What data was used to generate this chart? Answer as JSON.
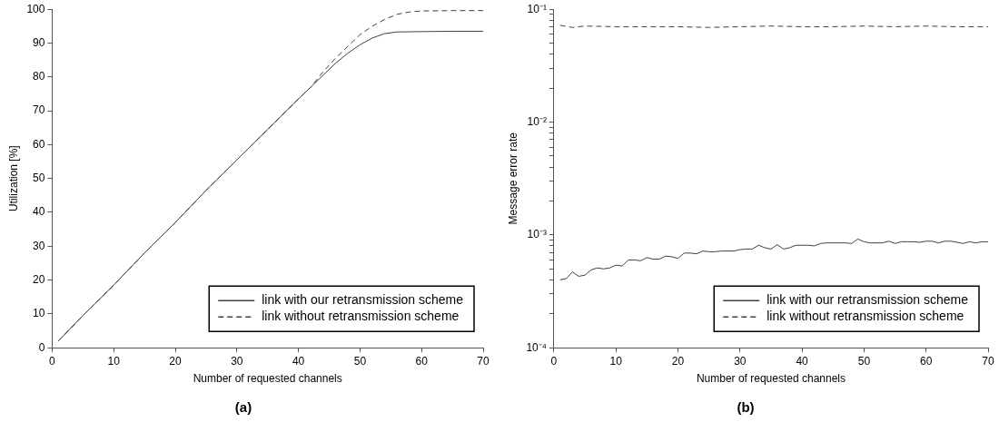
{
  "chart_data": [
    {
      "type": "line",
      "title": "(a)",
      "xlabel": "Number of requested channels",
      "ylabel": "Utilization [%]",
      "xlim": [
        0,
        70
      ],
      "xticks": [
        0,
        10,
        20,
        30,
        40,
        50,
        60,
        70
      ],
      "ylim": [
        0,
        100
      ],
      "yticks": [
        0,
        10,
        20,
        30,
        40,
        50,
        60,
        70,
        80,
        90,
        100
      ],
      "grid": false,
      "legend": "bottom right",
      "marker": "none",
      "series": [
        {
          "name": "link with our retransmission scheme",
          "color": "#404040",
          "line_style": "solid",
          "x": [
            1,
            5,
            10,
            15,
            20,
            25,
            30,
            35,
            40,
            42,
            44,
            46,
            48,
            50,
            52,
            54,
            56,
            60,
            65,
            70
          ],
          "values": [
            2,
            9.5,
            18.5,
            28,
            37,
            46.5,
            55.5,
            64.5,
            73.5,
            77,
            80.5,
            84,
            87,
            89.5,
            91.5,
            92.8,
            93.3,
            93.4,
            93.5,
            93.5
          ]
        },
        {
          "name": "link without retransmission scheme",
          "color": "#404040",
          "line_style": "dashed",
          "x": [
            1,
            5,
            10,
            15,
            20,
            25,
            30,
            35,
            40,
            42,
            44,
            46,
            48,
            50,
            52,
            54,
            56,
            58,
            60,
            65,
            70
          ],
          "values": [
            2,
            9.5,
            18.5,
            28,
            37,
            46.5,
            55.5,
            64.5,
            73.5,
            77,
            81.5,
            85.5,
            89,
            92.5,
            95,
            97,
            98.5,
            99.2,
            99.5,
            99.6,
            99.6
          ]
        }
      ]
    },
    {
      "type": "line",
      "title": "(b)",
      "xlabel": "Number of requested channels",
      "ylabel": "Message error rate",
      "log": "y",
      "xlim": [
        0,
        70
      ],
      "xticks": [
        0,
        10,
        20,
        30,
        40,
        50,
        60,
        70
      ],
      "ylim": [
        0.0001,
        0.1
      ],
      "yticks": [
        {
          "value": 0.0001,
          "label": "10⁻⁴"
        },
        {
          "value": 0.0002,
          "label": null
        },
        {
          "value": 0.0003,
          "label": null
        },
        {
          "value": 0.0004,
          "label": null
        },
        {
          "value": 0.0005,
          "label": null
        },
        {
          "value": 0.0006,
          "label": null
        },
        {
          "value": 0.0007,
          "label": null
        },
        {
          "value": 0.0008,
          "label": null
        },
        {
          "value": 0.0009,
          "label": null
        },
        {
          "value": 0.001,
          "label": "10⁻³"
        },
        {
          "value": 0.002,
          "label": null
        },
        {
          "value": 0.003,
          "label": null
        },
        {
          "value": 0.004,
          "label": null
        },
        {
          "value": 0.005,
          "label": null
        },
        {
          "value": 0.006,
          "label": null
        },
        {
          "value": 0.007,
          "label": null
        },
        {
          "value": 0.008,
          "label": null
        },
        {
          "value": 0.009,
          "label": null
        },
        {
          "value": 0.01,
          "label": "10⁻²"
        },
        {
          "value": 0.02,
          "label": null
        },
        {
          "value": 0.03,
          "label": null
        },
        {
          "value": 0.04,
          "label": null
        },
        {
          "value": 0.05,
          "label": null
        },
        {
          "value": 0.06,
          "label": null
        },
        {
          "value": 0.07,
          "label": null
        },
        {
          "value": 0.08,
          "label": null
        },
        {
          "value": 0.09,
          "label": null
        },
        {
          "value": 0.1,
          "label": "10⁻¹"
        }
      ],
      "grid": false,
      "legend": "bottom right",
      "marker": "none",
      "series": [
        {
          "name": "link with our retransmission scheme",
          "color": "#404040",
          "line_style": "solid",
          "x": [
            1,
            2,
            3,
            4,
            5,
            6,
            7,
            8,
            9,
            10,
            11,
            12,
            13,
            14,
            15,
            16,
            17,
            18,
            19,
            20,
            21,
            22,
            23,
            24,
            25,
            26,
            27,
            28,
            29,
            30,
            31,
            32,
            33,
            34,
            35,
            36,
            37,
            38,
            39,
            40,
            41,
            42,
            43,
            44,
            45,
            46,
            47,
            48,
            49,
            50,
            51,
            52,
            53,
            54,
            55,
            56,
            57,
            58,
            59,
            60,
            61,
            62,
            63,
            64,
            65,
            66,
            67,
            68,
            69,
            70
          ],
          "values": [
            0.0004,
            0.00041,
            0.00047,
            0.00043,
            0.00044,
            0.00049,
            0.00051,
            0.0005,
            0.00051,
            0.00054,
            0.00053,
            0.0006,
            0.0006,
            0.00059,
            0.00063,
            0.00061,
            0.00061,
            0.00065,
            0.00064,
            0.00062,
            0.00069,
            0.00069,
            0.00068,
            0.00072,
            0.00071,
            0.00071,
            0.00072,
            0.00072,
            0.00072,
            0.00074,
            0.00075,
            0.00075,
            0.00081,
            0.00077,
            0.00075,
            0.00082,
            0.00075,
            0.00077,
            0.00081,
            0.00081,
            0.00081,
            0.0008,
            0.00084,
            0.00085,
            0.00085,
            0.00085,
            0.00085,
            0.00084,
            0.00092,
            0.00087,
            0.00085,
            0.00085,
            0.00085,
            0.00088,
            0.00084,
            0.00087,
            0.00087,
            0.00087,
            0.00086,
            0.00088,
            0.00088,
            0.00085,
            0.00088,
            0.00088,
            0.00086,
            0.00084,
            0.00087,
            0.00085,
            0.00087,
            0.00087
          ]
        },
        {
          "name": "link without retransmission scheme",
          "color": "#404040",
          "line_style": "dashed",
          "x": [
            1,
            3,
            5,
            10,
            15,
            20,
            25,
            30,
            35,
            40,
            45,
            50,
            55,
            60,
            65,
            70
          ],
          "values": [
            0.072,
            0.069,
            0.071,
            0.07,
            0.07,
            0.07,
            0.069,
            0.07,
            0.071,
            0.07,
            0.07,
            0.071,
            0.07,
            0.071,
            0.07,
            0.07
          ]
        }
      ]
    }
  ]
}
